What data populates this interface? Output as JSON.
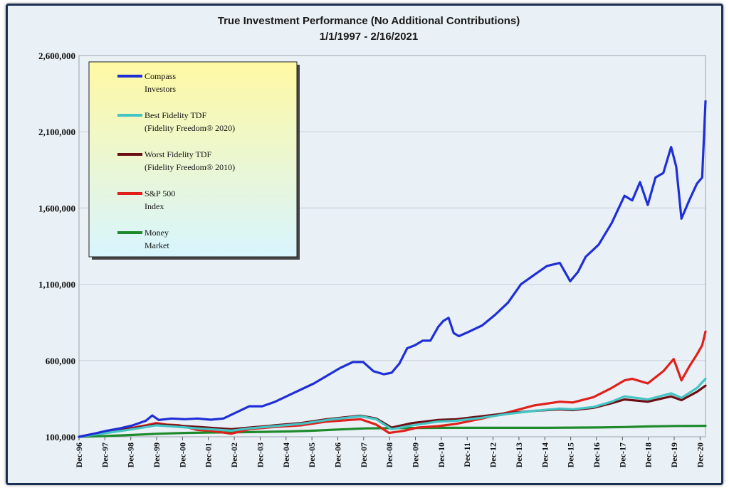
{
  "chart_data": {
    "type": "line",
    "title": "True Investment Performance (No Additional Contributions)",
    "subtitle": "1/1/1997 - 2/16/2021",
    "xlabel": "",
    "ylabel": "",
    "ylim": [
      100000,
      2600000
    ],
    "yticks": [
      100000,
      600000,
      1100000,
      1600000,
      2100000,
      2600000
    ],
    "ytick_labels": [
      "100,000",
      "600,000",
      "1,100,000",
      "1,600,000",
      "2,100,000",
      "2,600,000"
    ],
    "xlim": [
      1996.92,
      2021.13
    ],
    "xtick_labels": [
      "Dec-96",
      "Dec-97",
      "Dec-98",
      "Dec-99",
      "Dec-00",
      "Dec-01",
      "Dec-02",
      "Dec-03",
      "Dec-04",
      "Dec-05",
      "Dec-06",
      "Dec-07",
      "Dec-08",
      "Dec-09",
      "Dec-10",
      "Dec-11",
      "Dec-12",
      "Dec-13",
      "Dec-14",
      "Dec-15",
      "Dec-16",
      "Dec-17",
      "Dec-18",
      "Dec-19",
      "Dec-20"
    ],
    "grid": true,
    "legend_position": "top-left",
    "series": [
      {
        "name": "Compass Investors",
        "color": "#1f2fd6",
        "points": [
          [
            1996.92,
            100000
          ],
          [
            1997.5,
            120000
          ],
          [
            1998.0,
            140000
          ],
          [
            1998.5,
            155000
          ],
          [
            1999.0,
            175000
          ],
          [
            1999.5,
            205000
          ],
          [
            1999.75,
            240000
          ],
          [
            2000.0,
            210000
          ],
          [
            2000.5,
            220000
          ],
          [
            2001.0,
            215000
          ],
          [
            2001.5,
            220000
          ],
          [
            2002.0,
            212000
          ],
          [
            2002.5,
            220000
          ],
          [
            2003.0,
            260000
          ],
          [
            2003.5,
            300000
          ],
          [
            2004.0,
            300000
          ],
          [
            2004.5,
            330000
          ],
          [
            2005.0,
            370000
          ],
          [
            2005.5,
            410000
          ],
          [
            2006.0,
            450000
          ],
          [
            2006.5,
            500000
          ],
          [
            2007.0,
            550000
          ],
          [
            2007.5,
            590000
          ],
          [
            2007.9,
            590000
          ],
          [
            2008.3,
            530000
          ],
          [
            2008.7,
            510000
          ],
          [
            2009.0,
            520000
          ],
          [
            2009.3,
            580000
          ],
          [
            2009.6,
            680000
          ],
          [
            2009.9,
            700000
          ],
          [
            2010.2,
            730000
          ],
          [
            2010.5,
            730000
          ],
          [
            2010.8,
            820000
          ],
          [
            2011.0,
            860000
          ],
          [
            2011.2,
            880000
          ],
          [
            2011.4,
            780000
          ],
          [
            2011.6,
            760000
          ],
          [
            2012.0,
            790000
          ],
          [
            2012.5,
            830000
          ],
          [
            2013.0,
            900000
          ],
          [
            2013.5,
            980000
          ],
          [
            2014.0,
            1100000
          ],
          [
            2014.5,
            1160000
          ],
          [
            2015.0,
            1220000
          ],
          [
            2015.5,
            1240000
          ],
          [
            2015.9,
            1120000
          ],
          [
            2016.2,
            1180000
          ],
          [
            2016.5,
            1280000
          ],
          [
            2017.0,
            1360000
          ],
          [
            2017.5,
            1500000
          ],
          [
            2018.0,
            1680000
          ],
          [
            2018.3,
            1650000
          ],
          [
            2018.6,
            1770000
          ],
          [
            2018.9,
            1620000
          ],
          [
            2019.2,
            1800000
          ],
          [
            2019.5,
            1830000
          ],
          [
            2019.8,
            2000000
          ],
          [
            2020.0,
            1870000
          ],
          [
            2020.2,
            1530000
          ],
          [
            2020.5,
            1650000
          ],
          [
            2020.8,
            1760000
          ],
          [
            2021.0,
            1800000
          ],
          [
            2021.13,
            2300000
          ]
        ]
      },
      {
        "name": "Best Fidelity TDF (Fidelity Freedom® 2020)",
        "color": "#45c4c4",
        "points": [
          [
            1996.92,
            100000
          ],
          [
            1998.0,
            125000
          ],
          [
            1999.0,
            150000
          ],
          [
            1999.9,
            175000
          ],
          [
            2000.5,
            168000
          ],
          [
            2001.5,
            155000
          ],
          [
            2002.8,
            140000
          ],
          [
            2003.5,
            155000
          ],
          [
            2004.5,
            170000
          ],
          [
            2005.5,
            185000
          ],
          [
            2006.5,
            210000
          ],
          [
            2007.8,
            235000
          ],
          [
            2008.4,
            215000
          ],
          [
            2009.0,
            150000
          ],
          [
            2009.8,
            175000
          ],
          [
            2010.8,
            200000
          ],
          [
            2011.5,
            205000
          ],
          [
            2012.5,
            225000
          ],
          [
            2013.5,
            250000
          ],
          [
            2014.5,
            270000
          ],
          [
            2015.5,
            285000
          ],
          [
            2016.0,
            280000
          ],
          [
            2016.8,
            295000
          ],
          [
            2017.5,
            330000
          ],
          [
            2018.0,
            365000
          ],
          [
            2018.9,
            345000
          ],
          [
            2019.8,
            385000
          ],
          [
            2020.2,
            355000
          ],
          [
            2020.8,
            420000
          ],
          [
            2021.13,
            480000
          ]
        ]
      },
      {
        "name": "Worst Fidelity TDF (Fidelity Freedom® 2010)",
        "color": "#6b0f14",
        "points": [
          [
            1996.92,
            100000
          ],
          [
            1998.0,
            130000
          ],
          [
            1999.0,
            155000
          ],
          [
            1999.9,
            180000
          ],
          [
            2000.5,
            175000
          ],
          [
            2001.5,
            165000
          ],
          [
            2002.8,
            150000
          ],
          [
            2003.5,
            160000
          ],
          [
            2004.5,
            175000
          ],
          [
            2005.5,
            190000
          ],
          [
            2006.5,
            215000
          ],
          [
            2007.8,
            238000
          ],
          [
            2008.4,
            220000
          ],
          [
            2009.0,
            160000
          ],
          [
            2009.8,
            190000
          ],
          [
            2010.8,
            210000
          ],
          [
            2011.5,
            215000
          ],
          [
            2012.5,
            235000
          ],
          [
            2013.5,
            255000
          ],
          [
            2014.5,
            270000
          ],
          [
            2015.5,
            280000
          ],
          [
            2016.0,
            275000
          ],
          [
            2016.8,
            290000
          ],
          [
            2017.5,
            320000
          ],
          [
            2018.0,
            345000
          ],
          [
            2018.9,
            330000
          ],
          [
            2019.8,
            365000
          ],
          [
            2020.2,
            340000
          ],
          [
            2020.8,
            395000
          ],
          [
            2021.13,
            435000
          ]
        ]
      },
      {
        "name": "S&P 500 Index",
        "color": "#e0201b",
        "points": [
          [
            1996.92,
            100000
          ],
          [
            1997.5,
            120000
          ],
          [
            1998.0,
            132000
          ],
          [
            1998.7,
            150000
          ],
          [
            1999.5,
            175000
          ],
          [
            1999.9,
            190000
          ],
          [
            2000.3,
            180000
          ],
          [
            2000.8,
            175000
          ],
          [
            2001.5,
            145000
          ],
          [
            2002.0,
            140000
          ],
          [
            2002.8,
            120000
          ],
          [
            2003.5,
            150000
          ],
          [
            2004.5,
            165000
          ],
          [
            2005.5,
            175000
          ],
          [
            2006.5,
            200000
          ],
          [
            2007.8,
            215000
          ],
          [
            2008.4,
            180000
          ],
          [
            2008.9,
            125000
          ],
          [
            2009.5,
            140000
          ],
          [
            2010.0,
            160000
          ],
          [
            2010.8,
            170000
          ],
          [
            2011.5,
            185000
          ],
          [
            2012.5,
            220000
          ],
          [
            2013.5,
            260000
          ],
          [
            2014.5,
            305000
          ],
          [
            2015.5,
            330000
          ],
          [
            2016.0,
            325000
          ],
          [
            2016.8,
            360000
          ],
          [
            2017.5,
            420000
          ],
          [
            2018.0,
            470000
          ],
          [
            2018.3,
            480000
          ],
          [
            2018.9,
            450000
          ],
          [
            2019.5,
            530000
          ],
          [
            2019.9,
            610000
          ],
          [
            2020.2,
            470000
          ],
          [
            2020.5,
            560000
          ],
          [
            2020.8,
            640000
          ],
          [
            2021.0,
            700000
          ],
          [
            2021.13,
            790000
          ]
        ]
      },
      {
        "name": "Money Market",
        "color": "#1f8a2b",
        "points": [
          [
            1996.92,
            100000
          ],
          [
            1998.0,
            105000
          ],
          [
            1999.0,
            112000
          ],
          [
            2000.0,
            120000
          ],
          [
            2001.0,
            125000
          ],
          [
            2002.0,
            128000
          ],
          [
            2003.0,
            130000
          ],
          [
            2004.0,
            132000
          ],
          [
            2005.0,
            135000
          ],
          [
            2006.0,
            140000
          ],
          [
            2007.0,
            148000
          ],
          [
            2008.0,
            155000
          ],
          [
            2009.0,
            157000
          ],
          [
            2010.0,
            158000
          ],
          [
            2011.0,
            159000
          ],
          [
            2012.0,
            159000
          ],
          [
            2013.0,
            159000
          ],
          [
            2014.0,
            159000
          ],
          [
            2015.0,
            159000
          ],
          [
            2016.0,
            160000
          ],
          [
            2017.0,
            161000
          ],
          [
            2018.0,
            164000
          ],
          [
            2019.0,
            168000
          ],
          [
            2020.0,
            171000
          ],
          [
            2021.13,
            172000
          ]
        ]
      }
    ],
    "legend": [
      {
        "line1": "Compass",
        "line2": "Investors",
        "color": "#1f2fd6"
      },
      {
        "line1": "Best Fidelity TDF",
        "line2": "(Fidelity Freedom® 2020)",
        "color": "#45c4c4"
      },
      {
        "line1": "Worst Fidelity TDF",
        "line2": "(Fidelity Freedom® 2010)",
        "color": "#6b0f14"
      },
      {
        "line1": "S&P 500",
        "line2": "Index",
        "color": "#e0201b"
      },
      {
        "line1": "Money",
        "line2": "Market",
        "color": "#1f8a2b"
      }
    ],
    "colors": {
      "background": "#e9f0f6",
      "grid": "#c8ced6",
      "legend_fill": "#fff9a3",
      "frame": "#1c2f55"
    }
  }
}
